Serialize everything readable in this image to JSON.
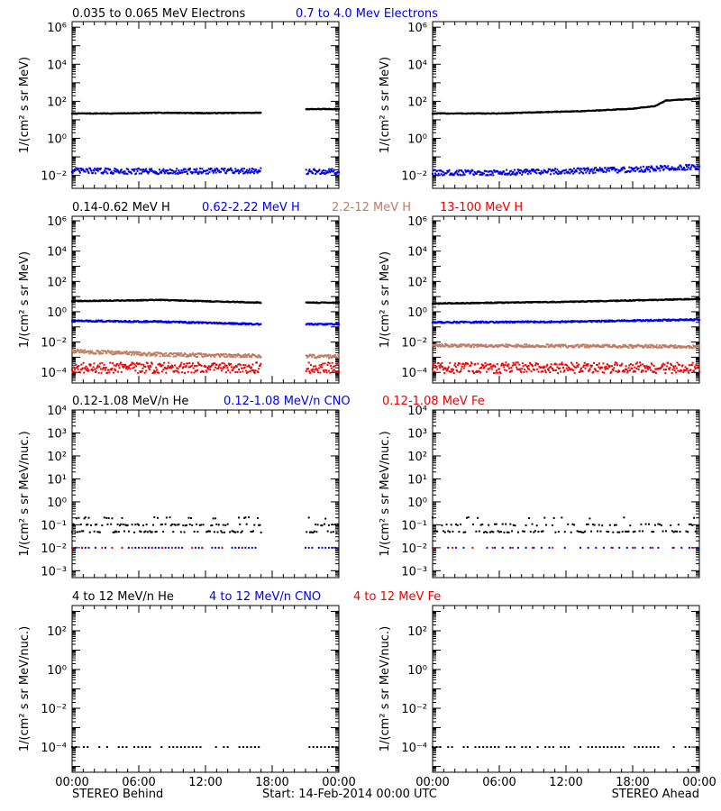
{
  "footer": {
    "left": "STEREO Behind",
    "center": "Start: 14-Feb-2014 00:00 UTC",
    "right": "STEREO Ahead"
  },
  "x_tick_labels": [
    "00:00",
    "06:00",
    "12:00",
    "18:00",
    "00:00"
  ],
  "colors": {
    "black": "#000000",
    "blue": "#0000ee",
    "brown": "#c27b63",
    "red": "#ee0000"
  },
  "chart_data": [
    {
      "type": "scatter",
      "row": 0,
      "spacecraft": "STEREO Behind",
      "ylabel": "1/(cm² s sr MeV)",
      "yscale": "log",
      "ylim": [
        0.002,
        2000000
      ],
      "ytick_exponents": [
        -2,
        0,
        2,
        4,
        6
      ],
      "xlim_hours": [
        0,
        24
      ],
      "data_gap_hours": [
        17,
        21
      ],
      "series": [
        {
          "name": "0.035 to 0.065 MeV Electrons",
          "color": "black",
          "x_hours": [
            0,
            4,
            8,
            12,
            16.9,
            21,
            24
          ],
          "y": [
            22,
            22,
            24,
            23,
            24,
            38,
            38
          ],
          "spread_decades": 0.02
        },
        {
          "name": "0.7 to 4.0 Mev Electrons",
          "color": "blue",
          "x_hours": [
            0,
            8,
            16.9,
            21,
            24
          ],
          "y": [
            0.018,
            0.016,
            0.018,
            0.016,
            0.016
          ],
          "spread_decades": 0.15
        }
      ]
    },
    {
      "type": "scatter",
      "row": 0,
      "spacecraft": "STEREO Ahead",
      "ylabel": "1/(cm² s sr MeV)",
      "yscale": "log",
      "ylim": [
        0.002,
        2000000
      ],
      "ytick_exponents": [
        -2,
        0,
        2,
        4,
        6
      ],
      "xlim_hours": [
        0,
        24
      ],
      "series": [
        {
          "name": "0.035 to 0.065 MeV Electrons",
          "color": "black",
          "x_hours": [
            0,
            6,
            10,
            14,
            18,
            20,
            21,
            24
          ],
          "y": [
            22,
            22,
            26,
            30,
            40,
            55,
            110,
            140
          ],
          "spread_decades": 0.02
        },
        {
          "name": "0.7 to 4.0 Mev Electrons",
          "color": "blue",
          "x_hours": [
            0,
            6,
            12,
            18,
            24
          ],
          "y": [
            0.014,
            0.014,
            0.017,
            0.02,
            0.03
          ],
          "spread_decades": 0.15
        }
      ]
    },
    {
      "type": "scatter",
      "row": 1,
      "spacecraft": "STEREO Behind",
      "ylabel": "1/(cm² s sr MeV)",
      "yscale": "log",
      "ylim": [
        2e-05,
        2000000
      ],
      "ytick_exponents": [
        -4,
        -2,
        0,
        2,
        4,
        6
      ],
      "xlim_hours": [
        0,
        24
      ],
      "data_gap_hours": [
        17,
        21
      ],
      "series": [
        {
          "name": "0.14-0.62 MeV H",
          "color": "black",
          "x_hours": [
            0,
            8,
            16.9,
            21,
            24
          ],
          "y": [
            5,
            6,
            4,
            4,
            4
          ],
          "spread_decades": 0.03
        },
        {
          "name": "0.62-2.22 MeV H",
          "color": "blue",
          "x_hours": [
            0,
            8,
            16.9,
            21,
            24
          ],
          "y": [
            0.25,
            0.22,
            0.15,
            0.15,
            0.15
          ],
          "spread_decades": 0.05
        },
        {
          "name": "2.2-12 MeV H",
          "color": "brown",
          "x_hours": [
            0,
            8,
            16.9,
            21,
            24
          ],
          "y": [
            0.0025,
            0.0015,
            0.0012,
            0.0012,
            0.0011
          ],
          "spread_decades": 0.12
        },
        {
          "name": "13-100 MeV H",
          "color": "red",
          "x_hours": [
            0,
            12,
            16.9,
            21,
            24
          ],
          "y": [
            0.0002,
            0.0002,
            0.0002,
            0.0002,
            0.0002
          ],
          "spread_decades": 0.35
        }
      ]
    },
    {
      "type": "scatter",
      "row": 1,
      "spacecraft": "STEREO Ahead",
      "ylabel": "1/(cm² s sr MeV)",
      "yscale": "log",
      "ylim": [
        2e-05,
        2000000
      ],
      "ytick_exponents": [
        -4,
        -2,
        0,
        2,
        4,
        6
      ],
      "xlim_hours": [
        0,
        24
      ],
      "series": [
        {
          "name": "0.14-0.62 MeV H",
          "color": "black",
          "x_hours": [
            0,
            12,
            24
          ],
          "y": [
            3.5,
            4.5,
            7
          ],
          "spread_decades": 0.03
        },
        {
          "name": "0.62-2.22 MeV H",
          "color": "blue",
          "x_hours": [
            0,
            12,
            24
          ],
          "y": [
            0.2,
            0.22,
            0.3
          ],
          "spread_decades": 0.05
        },
        {
          "name": "2.2-12 MeV H",
          "color": "brown",
          "x_hours": [
            0,
            12,
            24
          ],
          "y": [
            0.006,
            0.0055,
            0.005
          ],
          "spread_decades": 0.1
        },
        {
          "name": "13-100 MeV H",
          "color": "red",
          "x_hours": [
            0,
            12,
            24
          ],
          "y": [
            0.0002,
            0.0002,
            0.0002
          ],
          "spread_decades": 0.35
        }
      ]
    },
    {
      "type": "scatter",
      "row": 2,
      "spacecraft": "STEREO Behind",
      "ylabel": "1/(cm² s sr MeV/nuc.)",
      "yscale": "log",
      "ylim": [
        0.0005,
        10000
      ],
      "ytick_exponents": [
        -3,
        -2,
        -1,
        0,
        1,
        2,
        3,
        4
      ],
      "xlim_hours": [
        0,
        24
      ],
      "data_gap_hours": [
        17,
        21
      ],
      "series": [
        {
          "name": "0.12-1.08 MeV/n He",
          "color": "black",
          "x_hours": [
            0,
            16.9,
            21,
            24
          ],
          "y": [
            0.05,
            0.05,
            0.05,
            0.05
          ],
          "levels": [
            0.05,
            0.1,
            0.2
          ],
          "level_weights": [
            0.5,
            0.35,
            0.15
          ],
          "step_hours": 0.1
        },
        {
          "name": "0.12-1.08 MeV/n CNO",
          "color": "blue",
          "x_hours": [
            0,
            16.9,
            21,
            24
          ],
          "y": [
            0.01,
            0.01,
            0.01,
            0.01
          ],
          "step_hours": 0.3
        },
        {
          "name": "0.12-1.08 MeV Fe",
          "color": "red",
          "x_hours": [
            0,
            16.9
          ],
          "y": [
            0.01,
            0.01
          ],
          "step_hours": 0.9
        }
      ]
    },
    {
      "type": "scatter",
      "row": 2,
      "spacecraft": "STEREO Ahead",
      "ylabel": "1/(cm² s sr MeV/nuc.)",
      "yscale": "log",
      "ylim": [
        0.0005,
        10000
      ],
      "ytick_exponents": [
        -3,
        -2,
        -1,
        0,
        1,
        2,
        3,
        4
      ],
      "xlim_hours": [
        0,
        24
      ],
      "series": [
        {
          "name": "0.12-1.08 MeV/n He",
          "color": "black",
          "x_hours": [
            0,
            24
          ],
          "y": [
            0.05,
            0.05
          ],
          "levels": [
            0.05,
            0.1,
            0.2
          ],
          "level_weights": [
            0.55,
            0.35,
            0.1
          ],
          "step_hours": 0.14
        },
        {
          "name": "0.12-1.08 MeV/n CNO",
          "color": "blue",
          "x_hours": [
            0,
            24
          ],
          "y": [
            0.01,
            0.01
          ],
          "step_hours": 0.7
        },
        {
          "name": "0.12-1.08 MeV Fe",
          "color": "red",
          "x_hours": [
            0,
            24
          ],
          "y": [
            0.01,
            0.01
          ],
          "step_hours": 1.8
        }
      ]
    },
    {
      "type": "scatter",
      "row": 3,
      "spacecraft": "STEREO Behind",
      "ylabel": "1/(cm² s sr MeV/nuc.)",
      "yscale": "log",
      "ylim": [
        5e-06,
        2000
      ],
      "ytick_exponents": [
        -4,
        -2,
        0,
        2
      ],
      "xlim_hours": [
        0,
        24
      ],
      "data_gap_hours": [
        17,
        21
      ],
      "series": [
        {
          "name": "4 to 12 MeV/n He",
          "color": "black",
          "x_hours": [
            0,
            16.9,
            21,
            24
          ],
          "y": [
            0.0001,
            0.0001,
            0.0001,
            0.0001
          ],
          "step_hours": 0.35
        },
        {
          "name": "4 to 12 MeV/n CNO",
          "color": "blue",
          "x_hours": [],
          "y": []
        },
        {
          "name": "4 to 12 MeV Fe",
          "color": "red",
          "x_hours": [],
          "y": []
        }
      ]
    },
    {
      "type": "scatter",
      "row": 3,
      "spacecraft": "STEREO Ahead",
      "ylabel": "1/(cm² s sr MeV/nuc.)",
      "yscale": "log",
      "ylim": [
        5e-06,
        2000
      ],
      "ytick_exponents": [
        -4,
        -2,
        0,
        2
      ],
      "xlim_hours": [
        0,
        24
      ],
      "series": [
        {
          "name": "4 to 12 MeV/n He",
          "color": "black",
          "x_hours": [
            0,
            24
          ],
          "y": [
            0.0001,
            0.0001
          ],
          "step_hours": 0.35
        },
        {
          "name": "4 to 12 MeV/n CNO",
          "color": "blue",
          "x_hours": [],
          "y": []
        },
        {
          "name": "4 to 12 MeV Fe",
          "color": "red",
          "x_hours": [],
          "y": []
        }
      ]
    }
  ]
}
